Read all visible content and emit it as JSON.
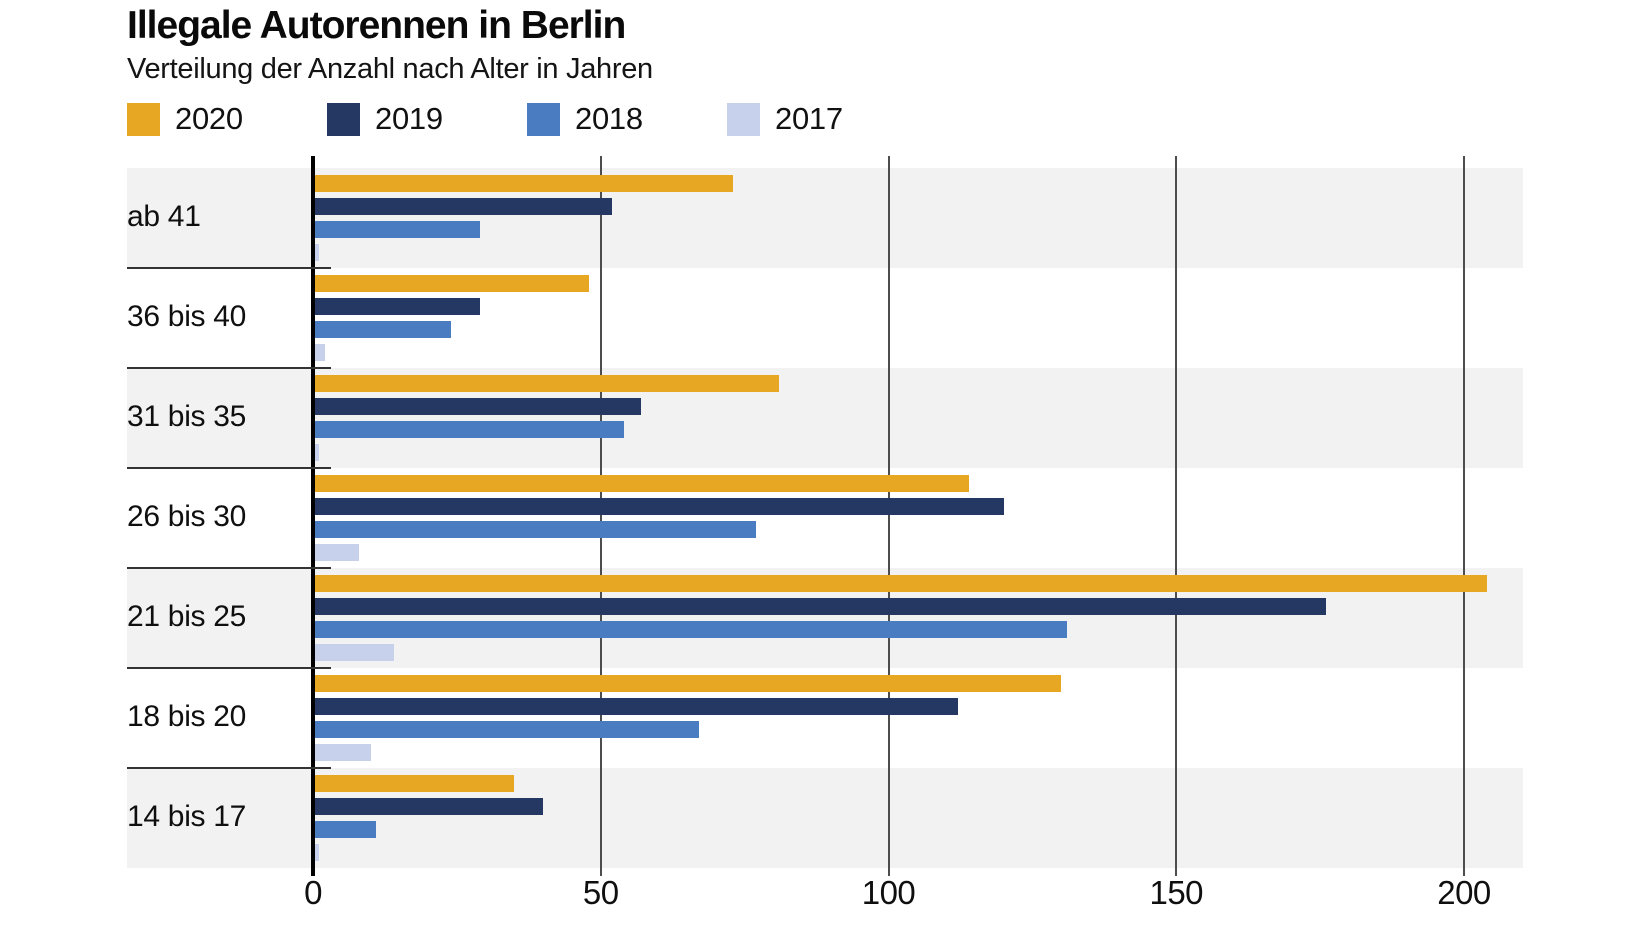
{
  "title": "Illegale Autorennen in Berlin",
  "subtitle": "Verteilung der Anzahl nach Alter in Jahren",
  "chart_data": {
    "type": "bar",
    "orientation": "horizontal",
    "title": "Illegale Autorennen in Berlin",
    "subtitle": "Verteilung der Anzahl nach Alter in Jahren",
    "categories": [
      "ab 41",
      "36 bis 40",
      "31 bis 35",
      "26 bis 30",
      "21 bis 25",
      "18 bis 20",
      "14 bis 17"
    ],
    "series": [
      {
        "name": "2020",
        "color": "#E8A722",
        "values": [
          73,
          48,
          81,
          114,
          204,
          130,
          35
        ]
      },
      {
        "name": "2019",
        "color": "#253763",
        "values": [
          52,
          29,
          57,
          120,
          176,
          112,
          40
        ]
      },
      {
        "name": "2018",
        "color": "#4A7CC1",
        "values": [
          29,
          24,
          54,
          77,
          131,
          67,
          11
        ]
      },
      {
        "name": "2017",
        "color": "#C7D1EC",
        "values": [
          1,
          2,
          1,
          8,
          14,
          10,
          1
        ]
      }
    ],
    "x_axis": {
      "ticks": [
        0,
        50,
        100,
        150,
        200
      ],
      "max": 200
    },
    "legend_position": "top",
    "grid": true,
    "row_stripe_colors": [
      "#F2F2F2",
      "#FFFFFF"
    ],
    "zero_axis_color": "#000000",
    "gridline_color": "#4d4d4d"
  }
}
